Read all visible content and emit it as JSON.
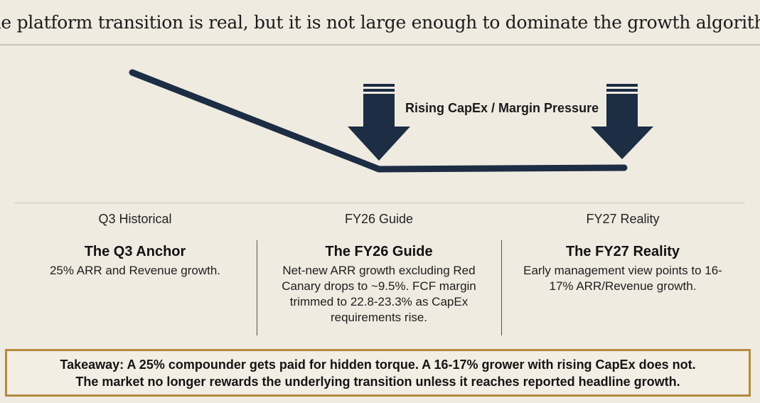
{
  "title": "The platform transition is real, but it is not large enough to dominate the growth algorithm",
  "arrow_label": "Rising CapEx / Margin Pressure",
  "colors": {
    "line": "#1c2d44",
    "arrow": "#1c2d44",
    "takeaway_border": "#b48a3e",
    "background": "#efebe1"
  },
  "phases": [
    {
      "label": "Q3 Historical",
      "heading": "The Q3 Anchor",
      "body": "25% ARR and Revenue growth."
    },
    {
      "label": "FY26 Guide",
      "heading": "The FY26 Guide",
      "body": "Net-new ARR growth excluding Red Canary drops to ~9.5%. FCF margin trimmed to 22.8-23.3% as CapEx requirements rise."
    },
    {
      "label": "FY27 Reality",
      "heading": "The FY27 Reality",
      "body": "Early management view points to 16-17% ARR/Revenue growth."
    }
  ],
  "takeaway": {
    "line1": "Takeaway: A 25% compounder gets paid for hidden torque. A 16-17% grower with rising CapEx does not.",
    "line2": "The market no longer rewards the underlying transition unless it reaches reported headline growth."
  }
}
